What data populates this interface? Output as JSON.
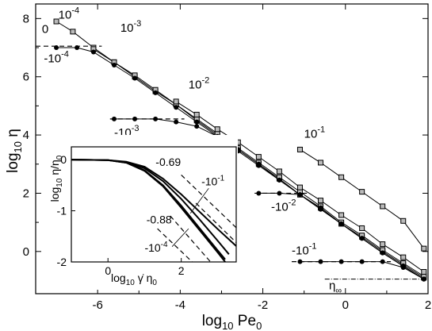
{
  "chart_data": {
    "type": "line",
    "xlabel": "log",
    "xlabel_sub": "10",
    "xlabel_tail": " Pe",
    "xlabel_tail_sub": "0",
    "ylabel": "log",
    "ylabel_sub": "10",
    "ylabel_tail": " η",
    "xlim": [
      -7.5,
      2
    ],
    "ylim": [
      -1.45,
      8.5
    ],
    "xticks": [
      -6,
      -4,
      -2,
      0,
      2
    ],
    "xtick_labels": [
      "-6",
      "-4",
      "-2",
      "0",
      "2"
    ],
    "yticks": [
      0,
      2,
      4,
      6,
      8
    ],
    "ytick_labels": [
      "0",
      "2",
      "4",
      "6",
      "8"
    ],
    "grid": false,
    "series": [
      {
        "label": "10^-4",
        "marker": "square",
        "points": [
          [
            -7.0,
            7.9
          ],
          [
            -6.6,
            7.55
          ],
          [
            -6.1,
            7.0
          ],
          [
            -5.6,
            6.5
          ],
          [
            -5.1,
            6.0
          ],
          [
            -4.6,
            5.5
          ],
          [
            -4.1,
            5.05
          ],
          [
            -3.6,
            4.5
          ],
          [
            -3.1,
            4.0
          ],
          [
            -2.6,
            3.5
          ],
          [
            -2.1,
            3.0
          ],
          [
            -1.6,
            2.5
          ],
          [
            -1.1,
            1.95
          ],
          [
            -0.6,
            1.5
          ],
          [
            -0.1,
            0.95
          ],
          [
            0.4,
            0.5
          ],
          [
            0.9,
            0.0
          ],
          [
            1.4,
            -0.45
          ],
          [
            1.9,
            -0.9
          ]
        ]
      },
      {
        "label": "10^-3",
        "marker": "square",
        "points": [
          [
            -6.1,
            6.95
          ],
          [
            -5.6,
            6.5
          ],
          [
            -5.1,
            6.05
          ],
          [
            -4.6,
            5.55
          ],
          [
            -4.1,
            5.05
          ],
          [
            -3.6,
            4.55
          ],
          [
            -3.1,
            4.05
          ],
          [
            -2.6,
            3.55
          ],
          [
            -2.1,
            3.05
          ],
          [
            -1.6,
            2.55
          ],
          [
            -1.1,
            2.05
          ],
          [
            -0.6,
            1.55
          ],
          [
            -0.1,
            1.0
          ],
          [
            0.4,
            0.55
          ],
          [
            0.9,
            0.05
          ],
          [
            1.4,
            -0.4
          ],
          [
            1.9,
            -0.85
          ]
        ]
      },
      {
        "label": "10^-2",
        "marker": "square",
        "points": [
          [
            -4.1,
            5.15
          ],
          [
            -3.6,
            4.7
          ],
          [
            -3.1,
            4.2
          ],
          [
            -2.6,
            3.75
          ],
          [
            -2.1,
            3.25
          ],
          [
            -1.6,
            2.75
          ],
          [
            -1.1,
            2.2
          ],
          [
            -0.6,
            1.75
          ],
          [
            -0.1,
            1.25
          ],
          [
            0.4,
            0.8
          ],
          [
            0.9,
            0.25
          ],
          [
            1.4,
            -0.2
          ],
          [
            1.9,
            -0.7
          ]
        ]
      },
      {
        "label": "10^-1",
        "marker": "square",
        "points": [
          [
            -1.1,
            3.5
          ],
          [
            -0.6,
            3.05
          ],
          [
            -0.1,
            2.55
          ],
          [
            0.4,
            2.05
          ],
          [
            0.9,
            1.55
          ],
          [
            1.4,
            1.05
          ],
          [
            1.9,
            0.1
          ]
        ]
      },
      {
        "label": "-10^-4",
        "marker": "circle",
        "points": [
          [
            -7.0,
            7.0
          ],
          [
            -6.5,
            7.0
          ],
          [
            -6.1,
            6.85
          ],
          [
            -5.6,
            6.4
          ],
          [
            -5.1,
            5.95
          ],
          [
            -4.6,
            5.45
          ],
          [
            -4.1,
            4.95
          ],
          [
            -3.6,
            4.45
          ],
          [
            -3.1,
            3.95
          ],
          [
            -2.6,
            3.45
          ],
          [
            -2.1,
            2.95
          ],
          [
            -1.6,
            2.45
          ],
          [
            -1.1,
            1.95
          ],
          [
            -0.6,
            1.45
          ],
          [
            -0.1,
            0.95
          ],
          [
            0.4,
            0.45
          ],
          [
            0.9,
            -0.05
          ],
          [
            1.4,
            -0.5
          ],
          [
            1.9,
            -0.95
          ]
        ]
      },
      {
        "label": "-10^-3",
        "marker": "circle",
        "points": [
          [
            -5.6,
            4.55
          ],
          [
            -5.1,
            4.55
          ],
          [
            -4.6,
            4.55
          ],
          [
            -4.1,
            4.45
          ],
          [
            -3.6,
            4.3
          ],
          [
            -3.1,
            3.95
          ],
          [
            -2.6,
            3.5
          ],
          [
            -2.1,
            3.0
          ],
          [
            -1.6,
            2.45
          ],
          [
            -1.1,
            1.95
          ],
          [
            -0.6,
            1.45
          ],
          [
            -0.1,
            0.95
          ],
          [
            0.4,
            0.45
          ],
          [
            0.9,
            -0.05
          ],
          [
            1.4,
            -0.5
          ],
          [
            1.9,
            -0.95
          ]
        ]
      },
      {
        "label": "-10^-2",
        "marker": "circle",
        "points": [
          [
            -2.1,
            2.0
          ],
          [
            -1.6,
            2.0
          ],
          [
            -1.1,
            1.95
          ],
          [
            -0.6,
            1.5
          ],
          [
            -0.1,
            0.95
          ],
          [
            0.4,
            0.45
          ],
          [
            0.9,
            -0.05
          ],
          [
            1.4,
            -0.5
          ],
          [
            1.9,
            -0.95
          ]
        ]
      },
      {
        "label": "-10^-1",
        "marker": "circle",
        "points": [
          [
            -1.1,
            -0.35
          ],
          [
            -0.6,
            -0.35
          ],
          [
            -0.1,
            -0.35
          ],
          [
            0.4,
            -0.35
          ],
          [
            0.9,
            -0.35
          ],
          [
            1.4,
            -0.55
          ],
          [
            1.9,
            -0.95
          ]
        ]
      }
    ],
    "dashed_plateaus": [
      {
        "y": 7.05,
        "x": [
          -7.5,
          -5.9
        ]
      },
      {
        "y": 4.55,
        "x": [
          -5.7,
          -3.9
        ]
      },
      {
        "y": 2.0,
        "x": [
          -2.2,
          -0.9
        ]
      },
      {
        "y": -0.35,
        "x": [
          -1.3,
          1.1
        ]
      }
    ],
    "eta_inf_line": {
      "y": -0.95,
      "x": [
        -0.5,
        1.9
      ]
    },
    "annotations": [
      {
        "text": "10",
        "sup": "-4",
        "x": -6.95,
        "y": 8.0
      },
      {
        "text": "0",
        "sup": "",
        "x": -7.35,
        "y": 7.5
      },
      {
        "text": "10",
        "sup": "-3",
        "x": -5.45,
        "y": 7.55
      },
      {
        "text": "-10",
        "sup": "-4",
        "x": -7.3,
        "y": 6.5
      },
      {
        "text": "10",
        "sup": "-2",
        "x": -3.8,
        "y": 5.6
      },
      {
        "text": "-10",
        "sup": "-3",
        "x": -5.6,
        "y": 3.95
      },
      {
        "text": "10",
        "sup": "-1",
        "x": -1.0,
        "y": 3.9
      },
      {
        "text": "-10",
        "sup": "-2",
        "x": -1.8,
        "y": 1.4
      },
      {
        "text": "-10",
        "sup": "-1",
        "x": -1.3,
        "y": -0.1
      },
      {
        "text": "η",
        "sub": "∞",
        "x": -0.4,
        "y": -1.3
      }
    ],
    "inset": {
      "xlabel": "log",
      "xlabel_sub": "10",
      "xlabel_tail": " γ̇ η",
      "xlabel_tail_sub": "0",
      "ylabel": "log",
      "ylabel_sub": "10",
      "ylabel_tail": " η/η",
      "ylabel_tail_sub": "0",
      "xlim": [
        -1,
        3.5
      ],
      "ylim": [
        -2,
        0.25
      ],
      "xticks": [
        0,
        2
      ],
      "xtick_labels": [
        "0",
        "2"
      ],
      "yticks": [
        -2,
        -1,
        0
      ],
      "ytick_labels": [
        "-2",
        "-1",
        "0"
      ],
      "curves": [
        [
          [
            -1,
            0
          ],
          [
            0,
            -0.01
          ],
          [
            0.5,
            -0.04
          ],
          [
            1.0,
            -0.14
          ],
          [
            1.5,
            -0.37
          ],
          [
            2.0,
            -0.68
          ],
          [
            2.5,
            -1.02
          ],
          [
            3.0,
            -1.36
          ],
          [
            3.5,
            -1.69
          ]
        ],
        [
          [
            -1,
            0
          ],
          [
            0,
            -0.01
          ],
          [
            0.5,
            -0.05
          ],
          [
            1.0,
            -0.17
          ],
          [
            1.5,
            -0.42
          ],
          [
            2.0,
            -0.77
          ],
          [
            2.5,
            -1.17
          ],
          [
            3.0,
            -1.59
          ],
          [
            3.3,
            -1.85
          ]
        ],
        [
          [
            -1,
            0
          ],
          [
            0,
            -0.01
          ],
          [
            0.5,
            -0.06
          ],
          [
            1.0,
            -0.21
          ],
          [
            1.5,
            -0.5
          ],
          [
            2.0,
            -0.9
          ],
          [
            2.5,
            -1.34
          ],
          [
            3.0,
            -1.78
          ],
          [
            3.2,
            -1.95
          ]
        ],
        [
          [
            -1,
            0
          ],
          [
            0,
            -0.01
          ],
          [
            0.5,
            -0.06
          ],
          [
            1.0,
            -0.22
          ],
          [
            1.5,
            -0.52
          ],
          [
            2.0,
            -0.94
          ],
          [
            2.5,
            -1.38
          ],
          [
            3.0,
            -1.82
          ],
          [
            3.2,
            -2.0
          ]
        ]
      ],
      "dashed_slopes": [
        [
          [
            2.0,
            -0.3
          ],
          [
            3.5,
            -1.33
          ]
        ],
        [
          [
            2.4,
            -0.85
          ],
          [
            3.5,
            -1.62
          ]
        ],
        [
          [
            1.7,
            -1.1
          ],
          [
            2.8,
            -2.0
          ]
        ],
        [
          [
            1.35,
            -1.35
          ],
          [
            2.3,
            -2.0
          ]
        ]
      ],
      "annotations": [
        {
          "text": "-0.69",
          "x": 1.3,
          "y": -0.12
        },
        {
          "text": "-10",
          "sup": "-1",
          "x": 2.55,
          "y": -0.5
        },
        {
          "text": "-0.88",
          "x": 1.05,
          "y": -1.25
        },
        {
          "text": "-10",
          "sup": "-4",
          "x": 1.0,
          "y": -1.8
        }
      ],
      "pointer_lines": [
        [
          [
            2.75,
            -0.56
          ],
          [
            2.25,
            -1.05
          ]
        ],
        [
          [
            1.75,
            -1.7
          ],
          [
            2.2,
            -1.35
          ]
        ]
      ]
    }
  }
}
